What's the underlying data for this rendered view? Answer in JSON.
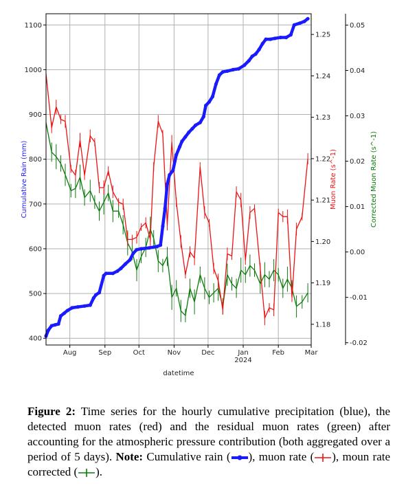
{
  "chart_data": {
    "type": "line",
    "xlabel": "datetime",
    "ylabel_left": "Cumulative Rain (mm)",
    "ylabel_right1": "Muon Rate (s^-1)",
    "ylabel_right2": "Corrected Muon Rate (s^-1)",
    "x_range": [
      "2023-07-11",
      "2024-03-01"
    ],
    "x_ticks": [
      {
        "date": "2023-08-01",
        "label": "Aug"
      },
      {
        "date": "2023-09-01",
        "label": "Sep"
      },
      {
        "date": "2023-10-01",
        "label": "Oct"
      },
      {
        "date": "2023-11-01",
        "label": "Nov"
      },
      {
        "date": "2023-12-01",
        "label": "Dec"
      },
      {
        "date": "2024-01-01",
        "label": "Jan\n2024"
      },
      {
        "date": "2024-02-01",
        "label": "Feb"
      },
      {
        "date": "2024-03-01",
        "label": "Mar"
      }
    ],
    "ylim_left": [
      385,
      1125
    ],
    "yticks_left": [
      400,
      500,
      600,
      700,
      800,
      900,
      1000,
      1100
    ],
    "ylim_right1": [
      1.175,
      1.255
    ],
    "yticks_right1": [
      1.18,
      1.19,
      1.2,
      1.21,
      1.22,
      1.23,
      1.24,
      1.25
    ],
    "ylim_right2": [
      -0.0205,
      0.0525
    ],
    "yticks_right2": [
      -0.02,
      -0.01,
      0.0,
      0.01,
      0.02,
      0.03,
      0.04,
      0.05
    ],
    "ytick_labels_right2": [
      "-0.02",
      "-0.01",
      "0.00",
      "0.01",
      "0.02",
      "0.03",
      "0.04",
      "0.05"
    ],
    "grid": true,
    "series": [
      {
        "axis": "left",
        "color": "#1a1aff",
        "points": [
          [
            "2023-07-11",
            405
          ],
          [
            "2023-07-13",
            418
          ],
          [
            "2023-07-16",
            428
          ],
          [
            "2023-07-19",
            430
          ],
          [
            "2023-07-22",
            432
          ],
          [
            "2023-07-24",
            450
          ],
          [
            "2023-07-27",
            456
          ],
          [
            "2023-07-30",
            462
          ],
          [
            "2023-08-03",
            468
          ],
          [
            "2023-08-08",
            470
          ],
          [
            "2023-08-14",
            472
          ],
          [
            "2023-08-19",
            474
          ],
          [
            "2023-08-22",
            490
          ],
          [
            "2023-08-24",
            497
          ],
          [
            "2023-08-27",
            502
          ],
          [
            "2023-08-31",
            540
          ],
          [
            "2023-09-02",
            545
          ],
          [
            "2023-09-08",
            545
          ],
          [
            "2023-09-12",
            550
          ],
          [
            "2023-09-15",
            556
          ],
          [
            "2023-09-19",
            566
          ],
          [
            "2023-09-23",
            575
          ],
          [
            "2023-09-26",
            590
          ],
          [
            "2023-09-29",
            598
          ],
          [
            "2023-10-03",
            600
          ],
          [
            "2023-10-10",
            602
          ],
          [
            "2023-10-17",
            605
          ],
          [
            "2023-10-20",
            608
          ],
          [
            "2023-10-22",
            650
          ],
          [
            "2023-10-24",
            690
          ],
          [
            "2023-10-26",
            745
          ],
          [
            "2023-10-28",
            765
          ],
          [
            "2023-10-31",
            775
          ],
          [
            "2023-11-03",
            810
          ],
          [
            "2023-11-06",
            828
          ],
          [
            "2023-11-08",
            840
          ],
          [
            "2023-11-11",
            850
          ],
          [
            "2023-11-14",
            860
          ],
          [
            "2023-11-17",
            868
          ],
          [
            "2023-11-20",
            876
          ],
          [
            "2023-11-24",
            882
          ],
          [
            "2023-11-27",
            895
          ],
          [
            "2023-11-29",
            920
          ],
          [
            "2023-12-02",
            928
          ],
          [
            "2023-12-05",
            940
          ],
          [
            "2023-12-08",
            968
          ],
          [
            "2023-12-11",
            988
          ],
          [
            "2023-12-14",
            995
          ],
          [
            "2023-12-18",
            997
          ],
          [
            "2023-12-23",
            1000
          ],
          [
            "2023-12-28",
            1002
          ],
          [
            "2024-01-02",
            1010
          ],
          [
            "2024-01-06",
            1020
          ],
          [
            "2024-01-09",
            1030
          ],
          [
            "2024-01-12",
            1035
          ],
          [
            "2024-01-15",
            1045
          ],
          [
            "2024-01-18",
            1058
          ],
          [
            "2024-01-21",
            1068
          ],
          [
            "2024-01-25",
            1068
          ],
          [
            "2024-01-29",
            1070
          ],
          [
            "2024-02-03",
            1072
          ],
          [
            "2024-02-08",
            1072
          ],
          [
            "2024-02-12",
            1078
          ],
          [
            "2024-02-15",
            1100
          ],
          [
            "2024-02-20",
            1104
          ],
          [
            "2024-02-24",
            1108
          ],
          [
            "2024-02-27",
            1114
          ]
        ]
      },
      {
        "axis": "right1",
        "color": "#ee1111",
        "points": [
          [
            "2023-07-11",
            1.2405
          ],
          [
            "2023-07-16",
            1.2275
          ],
          [
            "2023-07-20",
            1.2325
          ],
          [
            "2023-07-24",
            1.2295
          ],
          [
            "2023-07-28",
            1.229
          ],
          [
            "2023-08-02",
            1.2175
          ],
          [
            "2023-08-06",
            1.216
          ],
          [
            "2023-08-10",
            1.2245
          ],
          [
            "2023-08-14",
            1.216
          ],
          [
            "2023-08-19",
            1.2255
          ],
          [
            "2023-08-23",
            1.224
          ],
          [
            "2023-08-27",
            1.213
          ],
          [
            "2023-08-31",
            1.213
          ],
          [
            "2023-09-04",
            1.217
          ],
          [
            "2023-09-08",
            1.212
          ],
          [
            "2023-09-13",
            1.2095
          ],
          [
            "2023-09-17",
            1.209
          ],
          [
            "2023-09-21",
            1.2005
          ],
          [
            "2023-09-25",
            1.2005
          ],
          [
            "2023-09-29",
            1.201
          ],
          [
            "2023-10-03",
            1.2035
          ],
          [
            "2023-10-07",
            1.2045
          ],
          [
            "2023-10-11",
            1.2005
          ],
          [
            "2023-10-14",
            1.218
          ],
          [
            "2023-10-18",
            1.229
          ],
          [
            "2023-10-22",
            1.226
          ],
          [
            "2023-10-26",
            1.204
          ],
          [
            "2023-10-30",
            1.224
          ],
          [
            "2023-11-03",
            1.2095
          ],
          [
            "2023-11-07",
            1.2
          ],
          [
            "2023-11-11",
            1.192
          ],
          [
            "2023-11-15",
            1.1975
          ],
          [
            "2023-11-19",
            1.196
          ],
          [
            "2023-11-24",
            1.218
          ],
          [
            "2023-11-28",
            1.207
          ],
          [
            "2023-12-02",
            1.2045
          ],
          [
            "2023-12-06",
            1.1935
          ],
          [
            "2023-12-10",
            1.1905
          ],
          [
            "2023-12-14",
            1.1835
          ],
          [
            "2023-12-18",
            1.197
          ],
          [
            "2023-12-22",
            1.1965
          ],
          [
            "2023-12-26",
            1.212
          ],
          [
            "2023-12-30",
            1.21
          ],
          [
            "2024-01-03",
            1.1955
          ],
          [
            "2024-01-07",
            1.207
          ],
          [
            "2024-01-11",
            1.208
          ],
          [
            "2024-01-16",
            1.1935
          ],
          [
            "2024-01-20",
            1.1815
          ],
          [
            "2024-01-24",
            1.184
          ],
          [
            "2024-01-28",
            1.1835
          ],
          [
            "2024-02-01",
            1.207
          ],
          [
            "2024-02-05",
            1.206
          ],
          [
            "2024-02-09",
            1.206
          ],
          [
            "2024-02-13",
            1.1865
          ],
          [
            "2024-02-17",
            1.203
          ],
          [
            "2024-02-22",
            1.206
          ],
          [
            "2024-02-27",
            1.22
          ]
        ]
      },
      {
        "axis": "right2",
        "color": "#0a7a0a",
        "points": [
          [
            "2023-07-11",
            0.0285
          ],
          [
            "2023-07-16",
            0.022
          ],
          [
            "2023-07-20",
            0.021
          ],
          [
            "2023-07-24",
            0.0195
          ],
          [
            "2023-07-28",
            0.017
          ],
          [
            "2023-08-02",
            0.0135
          ],
          [
            "2023-08-06",
            0.014
          ],
          [
            "2023-08-10",
            0.0165
          ],
          [
            "2023-08-14",
            0.012
          ],
          [
            "2023-08-19",
            0.0135
          ],
          [
            "2023-08-23",
            0.011
          ],
          [
            "2023-08-27",
            0.009
          ],
          [
            "2023-08-31",
            0.011
          ],
          [
            "2023-09-04",
            0.013
          ],
          [
            "2023-09-08",
            0.009
          ],
          [
            "2023-09-13",
            0.009
          ],
          [
            "2023-09-17",
            0.006
          ],
          [
            "2023-09-21",
            0.002
          ],
          [
            "2023-09-25",
            0.0
          ],
          [
            "2023-09-29",
            -0.004
          ],
          [
            "2023-10-03",
            -0.001
          ],
          [
            "2023-10-07",
            0.001
          ],
          [
            "2023-10-11",
            0.005
          ],
          [
            "2023-10-14",
            0.003
          ],
          [
            "2023-10-18",
            -0.002
          ],
          [
            "2023-10-22",
            -0.003
          ],
          [
            "2023-10-26",
            -0.001
          ],
          [
            "2023-10-30",
            -0.01
          ],
          [
            "2023-11-03",
            -0.008
          ],
          [
            "2023-11-07",
            -0.013
          ],
          [
            "2023-11-11",
            -0.014
          ],
          [
            "2023-11-15",
            -0.008
          ],
          [
            "2023-11-19",
            -0.011
          ],
          [
            "2023-11-24",
            -0.005
          ],
          [
            "2023-11-28",
            -0.008
          ],
          [
            "2023-12-02",
            -0.01
          ],
          [
            "2023-12-06",
            -0.009
          ],
          [
            "2023-12-10",
            -0.008
          ],
          [
            "2023-12-14",
            -0.012
          ],
          [
            "2023-12-18",
            -0.005
          ],
          [
            "2023-12-22",
            -0.007
          ],
          [
            "2023-12-26",
            -0.008
          ],
          [
            "2023-12-30",
            -0.004
          ],
          [
            "2024-01-03",
            -0.005
          ],
          [
            "2024-01-07",
            -0.003
          ],
          [
            "2024-01-11",
            -0.004
          ],
          [
            "2024-01-16",
            -0.007
          ],
          [
            "2024-01-20",
            -0.005
          ],
          [
            "2024-01-24",
            -0.006
          ],
          [
            "2024-01-28",
            -0.004
          ],
          [
            "2024-02-01",
            -0.005
          ],
          [
            "2024-02-05",
            -0.008
          ],
          [
            "2024-02-09",
            -0.006
          ],
          [
            "2024-02-13",
            -0.008
          ],
          [
            "2024-02-17",
            -0.012
          ],
          [
            "2024-02-22",
            -0.011
          ],
          [
            "2024-02-27",
            -0.009
          ]
        ]
      }
    ]
  },
  "caption": {
    "fig_label": "Figure 2:",
    "text": " Time series for the hourly cumulative precipitation (blue), the detected muon rates (red) and the residual muon rates (green) after accounting for the atmospheric pressure contribution (both aggregated over a period of 5 days). ",
    "note_label": "Note:",
    "note_part1": " Cumulative rain (",
    "note_part2": "), muon rate (",
    "note_part3": "), moun rate corrected (",
    "note_part4": ")."
  },
  "colors": {
    "rain": "#1a1aff",
    "muon": "#ee1111",
    "corrected": "#0a7a0a",
    "grid": "#b0b0b0"
  }
}
